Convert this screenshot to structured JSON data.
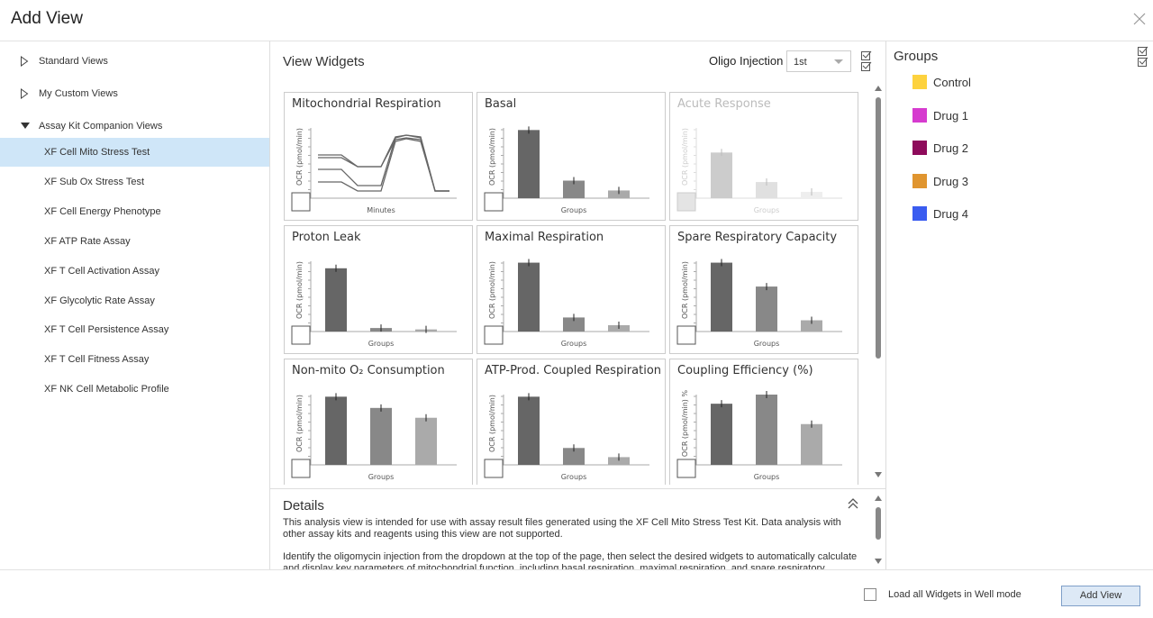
{
  "header": {
    "title": "Add View"
  },
  "nav": {
    "items": [
      "Standard Views",
      "My Custom Views",
      "Assay Kit Companion Views"
    ],
    "children": [
      "XF Cell Mito Stress Test",
      "XF Sub Ox Stress Test",
      "XF Cell Energy Phenotype",
      "XF ATP Rate Assay",
      "XF T Cell Activation Assay",
      "XF Glycolytic Rate Assay",
      "XF T Cell Persistence Assay",
      "XF T Cell Fitness Assay",
      "XF NK Cell Metabolic Profile"
    ]
  },
  "widgets": {
    "title": "View Widgets",
    "injection_label": "Oligo Injection",
    "injection_value": "1st",
    "items": [
      {
        "title": "Mitochondrial Respiration",
        "y_label": "OCR (pmol/min)",
        "x_label": "Minutes"
      },
      {
        "title": "Basal",
        "y_label": "OCR (pmol/min)",
        "x_label": "Groups"
      },
      {
        "title": "Acute Response",
        "y_label": "OCR (pmol/min)",
        "x_label": "Groups"
      },
      {
        "title": "Proton Leak",
        "y_label": "OCR (pmol/min)",
        "x_label": "Groups"
      },
      {
        "title": "Maximal Respiration",
        "y_label": "OCR (pmol/min)",
        "x_label": "Groups"
      },
      {
        "title": "Spare Respiratory Capacity",
        "y_label": "OCR (pmol/min)",
        "x_label": "Groups"
      },
      {
        "title": "Non-mito O₂ Consumption",
        "y_label": "OCR (pmol/min)",
        "x_label": "Groups"
      },
      {
        "title": "ATP-Prod. Coupled Respiration",
        "y_label": "OCR (pmol/min)",
        "x_label": "Groups"
      },
      {
        "title": "Coupling Efficiency (%)",
        "y_label": "OCR (pmol/min) %",
        "x_label": "Groups"
      }
    ]
  },
  "details": {
    "title": "Details",
    "paragraphs": [
      "This analysis view is intended for use with assay result files generated using the XF Cell Mito Stress Test Kit. Data analysis with other assay kits and reagents using this view are not supported.",
      "Identify the oligomycin injection from the dropdown at the top of the page, then select the desired widgets to automatically calculate and display key parameters of mitochondrial function, including basal respiration, maximal respiration, and spare respiratory"
    ]
  },
  "groups": {
    "title": "Groups",
    "items": [
      {
        "name": "Control",
        "color": "#fdd23e"
      },
      {
        "name": "Drug 1",
        "color": "#d63bcf"
      },
      {
        "name": "Drug 2",
        "color": "#8e0b5b"
      },
      {
        "name": "Drug 3",
        "color": "#e0952f"
      },
      {
        "name": "Drug 4",
        "color": "#3a5cf0"
      }
    ]
  },
  "footer": {
    "checkbox_label": "Load all Widgets in Well mode",
    "button": "Add View"
  }
}
